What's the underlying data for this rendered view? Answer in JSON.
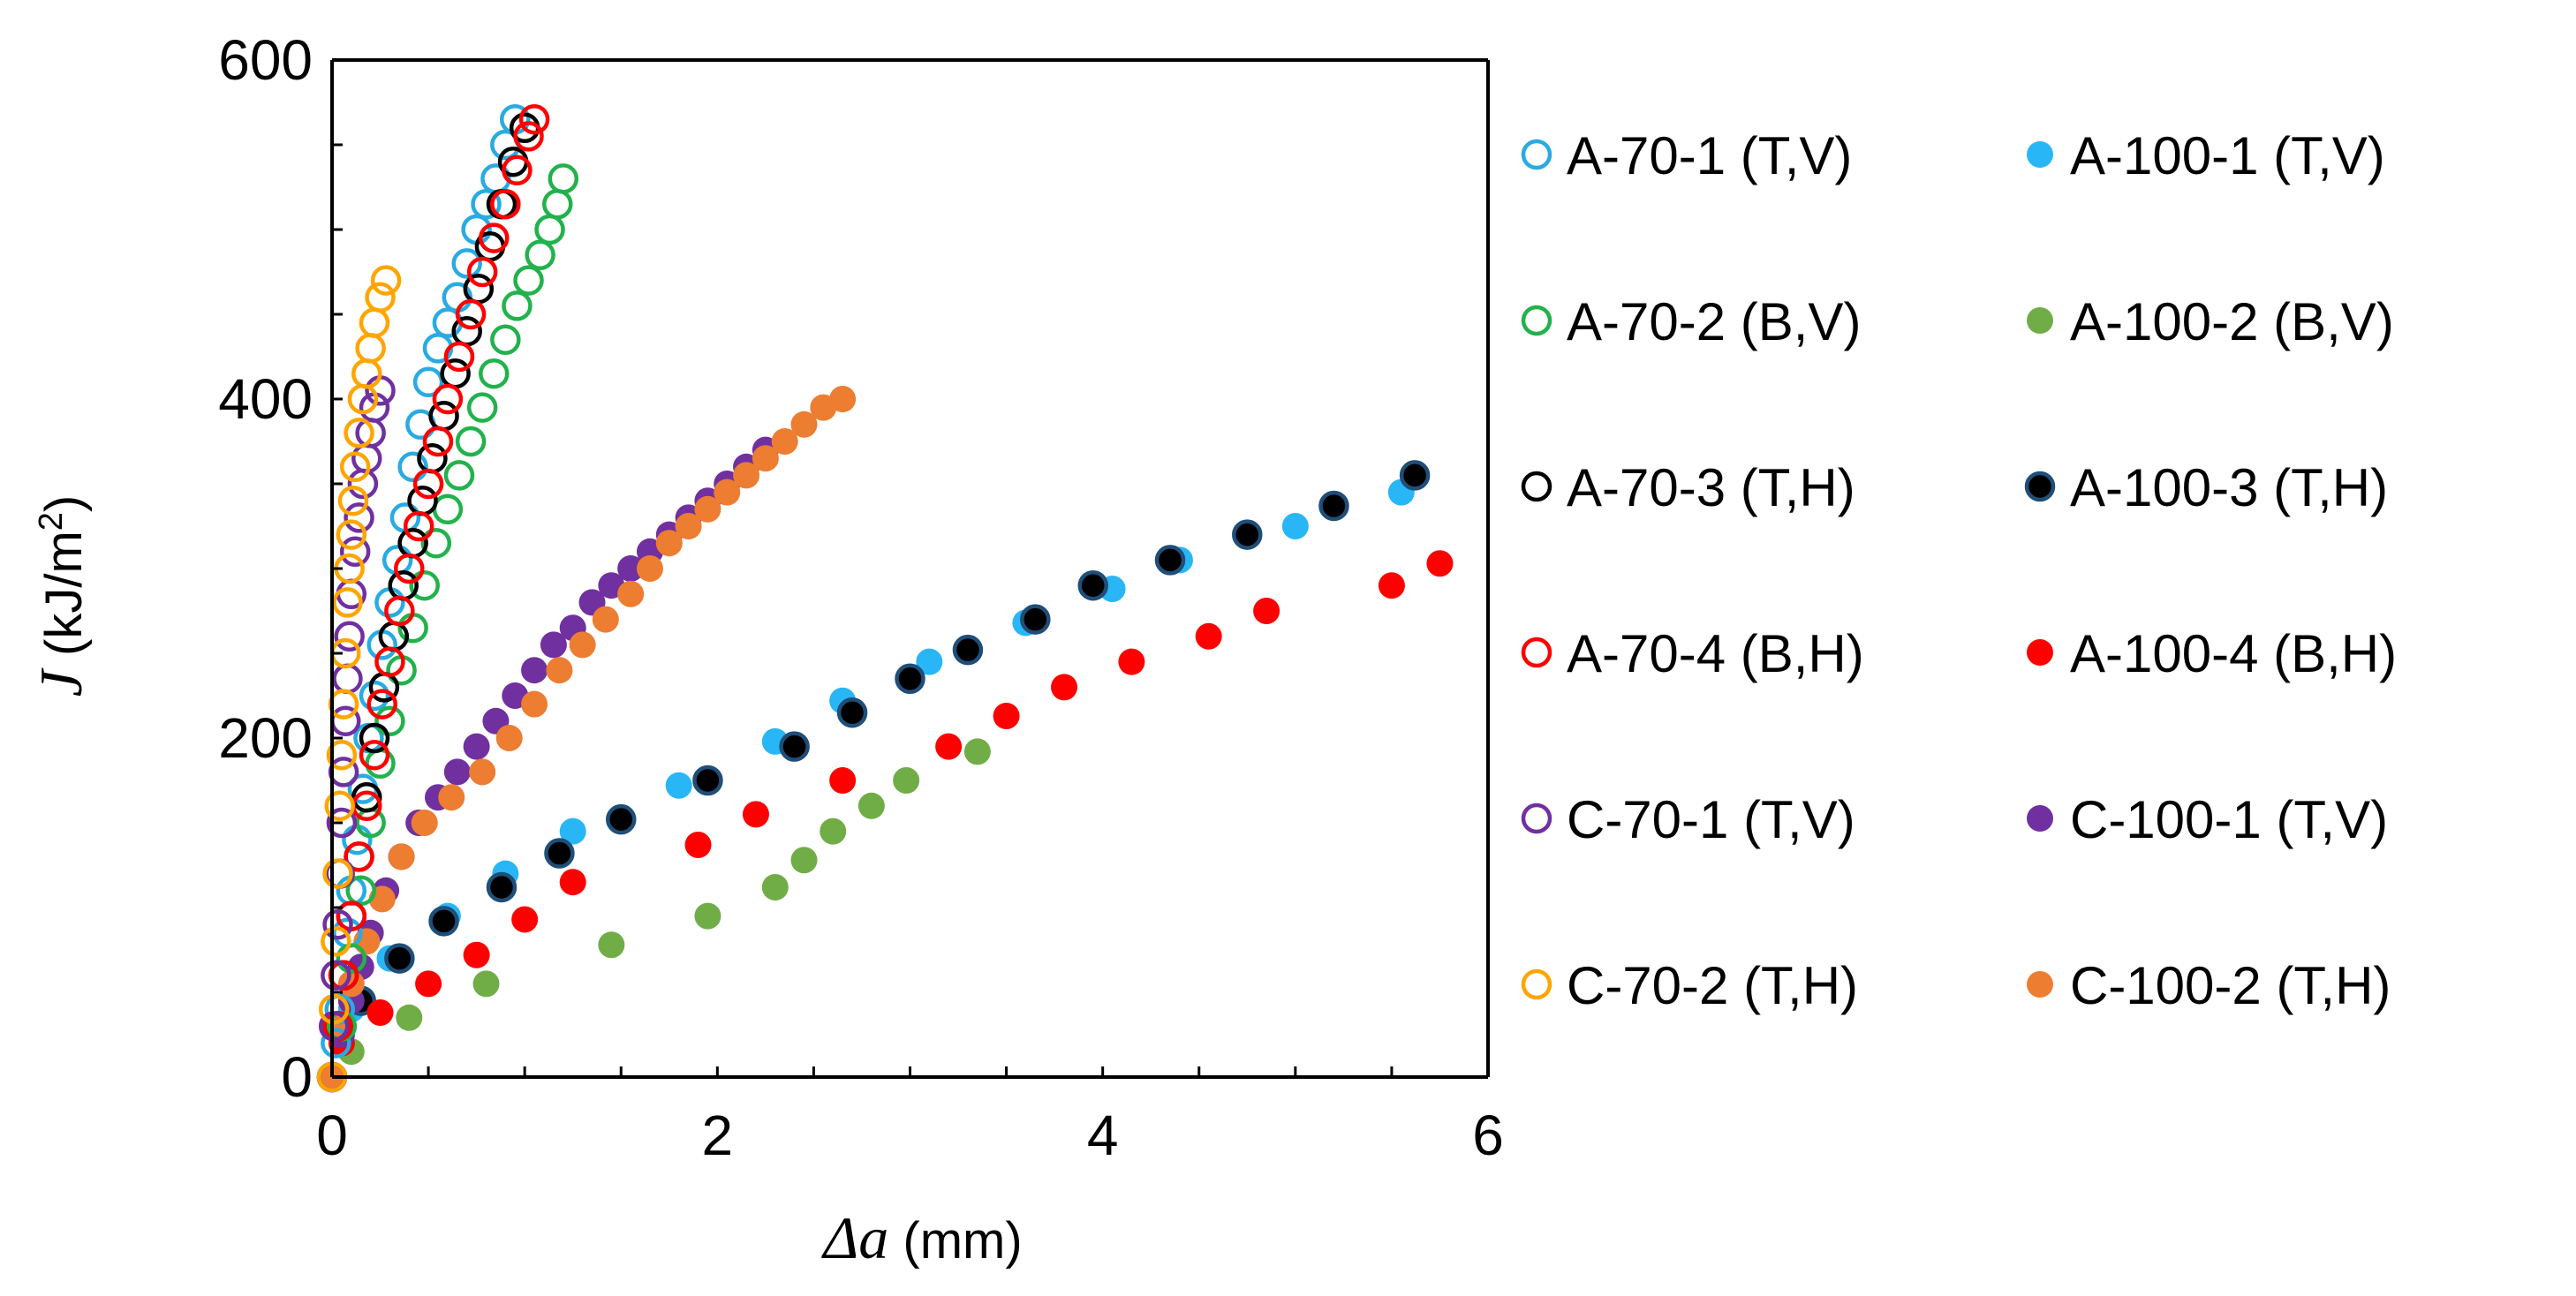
{
  "chart_data": {
    "type": "scatter",
    "title": "",
    "xlabel": {
      "symbol": "Δa",
      "unit": " (mm)"
    },
    "ylabel": {
      "symbol": "J",
      "unit_pre": " (kJ/m",
      "unit_sup": "2",
      "unit_post": ")"
    },
    "xlim": [
      0,
      6
    ],
    "ylim": [
      0,
      600
    ],
    "x_ticks": [
      0,
      2,
      4,
      6
    ],
    "y_ticks": [
      0,
      200,
      400,
      600
    ],
    "x_tick_labels": [
      "0",
      "2",
      "4",
      "6"
    ],
    "y_tick_labels": [
      "0",
      "200",
      "400",
      "600"
    ],
    "grid": false,
    "legend_position": "right",
    "series": [
      {
        "name": "A-70-1 (T,V)",
        "marker": "open",
        "color": "#29ABE2",
        "x": [
          0.0,
          0.02,
          0.04,
          0.06,
          0.08,
          0.1,
          0.13,
          0.16,
          0.19,
          0.22,
          0.26,
          0.3,
          0.34,
          0.38,
          0.42,
          0.46,
          0.5,
          0.55,
          0.6,
          0.65,
          0.7,
          0.75,
          0.8,
          0.85,
          0.9,
          0.95
        ],
        "y": [
          0,
          20,
          40,
          60,
          85,
          110,
          140,
          170,
          200,
          225,
          255,
          280,
          305,
          330,
          360,
          385,
          410,
          430,
          445,
          460,
          480,
          500,
          515,
          530,
          550,
          565
        ]
      },
      {
        "name": "A-100-1 (T,V)",
        "marker": "filled",
        "color": "#29B6F6",
        "x": [
          0.1,
          0.3,
          0.6,
          0.9,
          1.25,
          1.8,
          2.3,
          2.65,
          3.1,
          3.6,
          4.05,
          4.4,
          5.0,
          5.55
        ],
        "y": [
          40,
          70,
          95,
          120,
          145,
          172,
          198,
          222,
          245,
          268,
          288,
          305,
          325,
          345
        ]
      },
      {
        "name": "A-70-2 (B,V)",
        "marker": "open",
        "color": "#22B24C",
        "x": [
          0.05,
          0.1,
          0.15,
          0.2,
          0.25,
          0.3,
          0.36,
          0.42,
          0.48,
          0.54,
          0.6,
          0.66,
          0.72,
          0.78,
          0.84,
          0.9,
          0.96,
          1.02,
          1.08,
          1.13,
          1.17,
          1.2
        ],
        "y": [
          30,
          70,
          110,
          150,
          185,
          210,
          240,
          265,
          290,
          315,
          335,
          355,
          375,
          395,
          415,
          435,
          455,
          470,
          485,
          500,
          515,
          530
        ]
      },
      {
        "name": "A-100-2 (B,V)",
        "marker": "filled",
        "color": "#70AD47",
        "x": [
          0.1,
          0.4,
          0.8,
          1.45,
          1.95,
          2.3,
          2.45,
          2.6,
          2.8,
          2.98,
          3.35
        ],
        "y": [
          15,
          35,
          55,
          78,
          95,
          112,
          128,
          145,
          160,
          175,
          192
        ]
      },
      {
        "name": "A-70-3 (T,H)",
        "marker": "open",
        "color": "#000000",
        "x": [
          0.0,
          0.03,
          0.06,
          0.1,
          0.14,
          0.18,
          0.22,
          0.27,
          0.32,
          0.37,
          0.42,
          0.47,
          0.52,
          0.58,
          0.64,
          0.7,
          0.76,
          0.82,
          0.88,
          0.94,
          1.0
        ],
        "y": [
          0,
          30,
          60,
          95,
          130,
          165,
          200,
          230,
          260,
          290,
          315,
          340,
          365,
          390,
          415,
          440,
          465,
          490,
          515,
          540,
          560
        ]
      },
      {
        "name": "A-100-3 (T,H)",
        "marker": "filled-ring",
        "color": "#000000",
        "ring": "#1F4E79",
        "x": [
          0.0,
          0.15,
          0.35,
          0.58,
          0.88,
          1.18,
          1.5,
          1.95,
          2.4,
          2.7,
          3.0,
          3.3,
          3.65,
          3.95,
          4.35,
          4.75,
          5.2,
          5.62
        ],
        "y": [
          0,
          45,
          70,
          92,
          112,
          132,
          152,
          175,
          195,
          215,
          235,
          252,
          270,
          290,
          305,
          320,
          337,
          355
        ]
      },
      {
        "name": "A-70-4 (B,H)",
        "marker": "open",
        "color": "#FF0000",
        "x": [
          0.0,
          0.03,
          0.06,
          0.1,
          0.14,
          0.18,
          0.22,
          0.26,
          0.3,
          0.35,
          0.4,
          0.45,
          0.5,
          0.55,
          0.6,
          0.66,
          0.72,
          0.78,
          0.84,
          0.9,
          0.96,
          1.02,
          1.05
        ],
        "y": [
          0,
          30,
          60,
          95,
          130,
          160,
          190,
          220,
          245,
          275,
          300,
          325,
          350,
          375,
          400,
          425,
          450,
          475,
          495,
          515,
          535,
          555,
          565
        ]
      },
      {
        "name": "A-100-4 (B,H)",
        "marker": "filled",
        "color": "#FF0000",
        "x": [
          0.05,
          0.25,
          0.5,
          0.75,
          1.0,
          1.25,
          1.9,
          2.2,
          2.65,
          3.2,
          3.5,
          3.8,
          4.15,
          4.55,
          4.85,
          5.5,
          5.75
        ],
        "y": [
          20,
          38,
          55,
          72,
          93,
          115,
          137,
          155,
          175,
          195,
          213,
          230,
          245,
          260,
          275,
          290,
          303
        ]
      },
      {
        "name": "C-70-1 (T,V)",
        "marker": "open",
        "color": "#7030A0",
        "x": [
          0.0,
          0.01,
          0.02,
          0.03,
          0.04,
          0.05,
          0.06,
          0.07,
          0.08,
          0.09,
          0.1,
          0.12,
          0.14,
          0.16,
          0.18,
          0.2,
          0.22,
          0.25
        ],
        "y": [
          0,
          30,
          60,
          90,
          120,
          150,
          180,
          210,
          235,
          260,
          285,
          310,
          330,
          350,
          365,
          380,
          395,
          405
        ]
      },
      {
        "name": "C-100-1 (T,V)",
        "marker": "filled",
        "color": "#7030A0",
        "x": [
          0.0,
          0.05,
          0.1,
          0.15,
          0.2,
          0.28,
          0.36,
          0.45,
          0.55,
          0.65,
          0.75,
          0.85,
          0.95,
          1.05,
          1.15,
          1.25,
          1.35,
          1.45,
          1.55,
          1.65,
          1.75,
          1.85,
          1.95,
          2.05,
          2.15,
          2.25
        ],
        "y": [
          0,
          25,
          45,
          65,
          85,
          110,
          130,
          150,
          165,
          180,
          195,
          210,
          225,
          240,
          255,
          265,
          280,
          290,
          300,
          310,
          320,
          330,
          340,
          350,
          360,
          370
        ]
      },
      {
        "name": "C-70-2 (T,H)",
        "marker": "open",
        "color": "#FFA500",
        "x": [
          0.0,
          0.01,
          0.02,
          0.03,
          0.04,
          0.05,
          0.06,
          0.07,
          0.08,
          0.09,
          0.1,
          0.11,
          0.12,
          0.14,
          0.16,
          0.18,
          0.2,
          0.22,
          0.25,
          0.28
        ],
        "y": [
          0,
          40,
          80,
          120,
          160,
          190,
          220,
          250,
          280,
          300,
          320,
          340,
          360,
          380,
          400,
          415,
          430,
          445,
          460,
          470
        ]
      },
      {
        "name": "C-100-2 (T,H)",
        "marker": "filled",
        "color": "#ED7D31",
        "x": [
          0.0,
          0.05,
          0.1,
          0.18,
          0.26,
          0.36,
          0.48,
          0.62,
          0.78,
          0.92,
          1.05,
          1.18,
          1.3,
          1.42,
          1.55,
          1.65,
          1.75,
          1.85,
          1.95,
          2.05,
          2.15,
          2.25,
          2.35,
          2.45,
          2.55,
          2.65
        ],
        "y": [
          0,
          30,
          55,
          80,
          105,
          130,
          150,
          165,
          180,
          200,
          220,
          240,
          255,
          270,
          285,
          300,
          315,
          325,
          335,
          345,
          355,
          365,
          375,
          385,
          395,
          400
        ]
      }
    ]
  }
}
